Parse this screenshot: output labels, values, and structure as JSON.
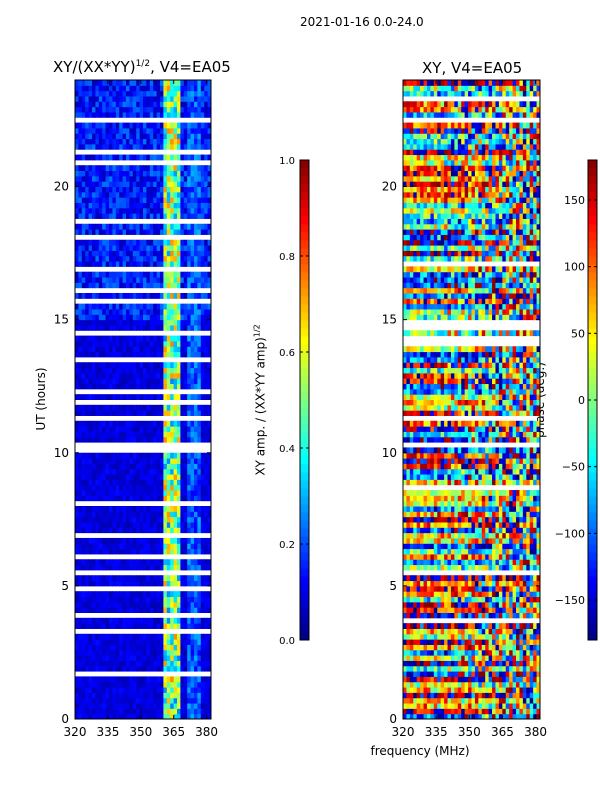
{
  "figure": {
    "suptitle": "2021-01-16 0.0-24.0",
    "shared_xlabel": "frequency (MHz)"
  },
  "chart_data": [
    {
      "type": "heatmap",
      "title": "XY/(XX*YY)^{1/2}, V4=EA05",
      "title_main": "XY/(XX*YY)",
      "title_sup": "1/2",
      "title_tail": ", V4=EA05",
      "xlabel": "",
      "ylabel": "UT (hours)",
      "xlim": [
        320,
        382
      ],
      "ylim": [
        0,
        24
      ],
      "xticks": [
        320,
        335,
        350,
        365,
        380
      ],
      "yticks": [
        0,
        5,
        10,
        15,
        20
      ],
      "colormap": "jet",
      "data_description": "Mostly near 0 (dark blue); elevated 0.3-0.8 in the channel band 360-368 MHz and weak 0.2-0.3 near 372-378 MHz; horizontal white gaps where data are flagged (notably around 10.2 h and 13.5-14.7 h)",
      "band_high_freq": [
        360,
        368
      ],
      "colorbar": {
        "label_main": "XY amp. / (XX*YY amp)",
        "label_sup": "1/2",
        "range": [
          0.0,
          1.0
        ],
        "ticks": [
          "0.0",
          "0.2",
          "0.4",
          "0.6",
          "0.8",
          "1.0"
        ]
      }
    },
    {
      "type": "heatmap",
      "title": "XY, V4=EA05",
      "xlabel": "frequency (MHz)",
      "ylabel": "",
      "xlim": [
        320,
        382
      ],
      "ylim": [
        0,
        24
      ],
      "xticks": [
        320,
        335,
        350,
        365,
        380
      ],
      "yticks": [
        0,
        5,
        10,
        15,
        20
      ],
      "colormap": "jet",
      "data_description": "Phase in degrees, noisy across the full band with horizontal striping in time; white flagged gaps around 5.5 h, 14.5-15 h and 22.5-23 h",
      "colorbar": {
        "label": "phase (deg.)",
        "range": [
          -180,
          180
        ],
        "ticks": [
          "150",
          "100",
          "50",
          "0",
          "−50",
          "−100",
          "−150"
        ],
        "tick_values": [
          150,
          100,
          50,
          0,
          -50,
          -100,
          -150
        ]
      }
    }
  ]
}
